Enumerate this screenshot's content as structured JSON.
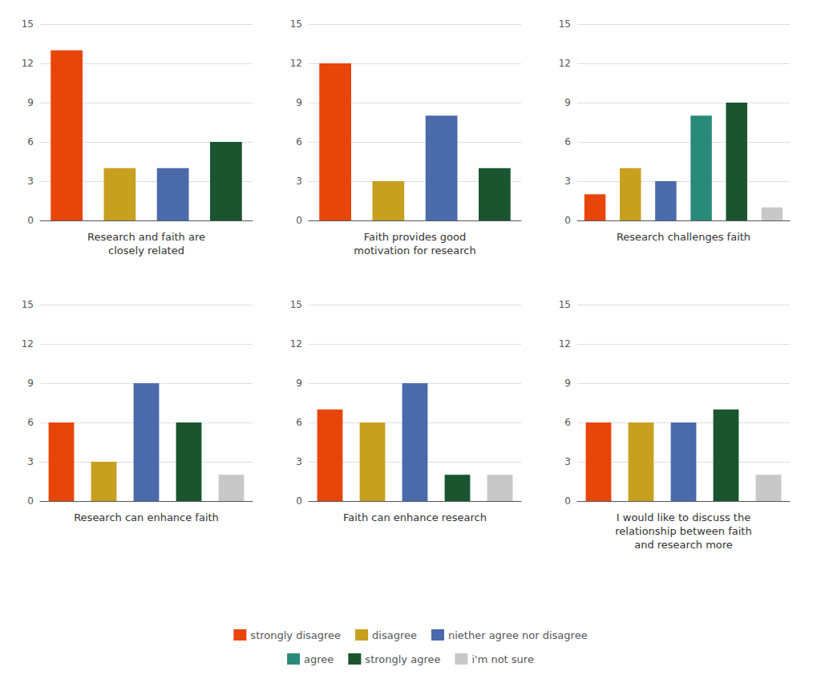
{
  "chart_data": [
    {
      "type": "bar",
      "xlabel": "Research and faith are\nclosely related",
      "categories": [
        null,
        null,
        null,
        null
      ],
      "series": [
        {
          "name": "strongly disagree",
          "color": "#E8450A",
          "values": [
            13,
            null,
            null,
            null
          ]
        },
        {
          "name": "disagree",
          "color": "#C8A020",
          "values": [
            null,
            4,
            null,
            null
          ]
        },
        {
          "name": "niether agree nor disagree",
          "color": "#4A6AAA",
          "values": [
            null,
            null,
            4,
            null
          ]
        },
        {
          "name": "strongly agree",
          "color": "#1A5530",
          "values": [
            null,
            null,
            null,
            6
          ]
        }
      ],
      "stacked": true,
      "ylim": [
        0,
        15
      ],
      "yticks": [
        0,
        3,
        6,
        9,
        12,
        15
      ],
      "grid": true,
      "tick_labels": "y",
      "legend": "bottom"
    },
    {
      "type": "bar",
      "xlabel": "Faith provides good\nmotivation for research",
      "categories": [
        null,
        null,
        null,
        null
      ],
      "series": [
        {
          "name": "strongly disagree",
          "color": "#E8450A",
          "values": [
            12,
            null,
            null,
            null
          ]
        },
        {
          "name": "disagree",
          "color": "#C8A020",
          "values": [
            null,
            3,
            null,
            null
          ]
        },
        {
          "name": "niether agree nor disagree",
          "color": "#4A6AAA",
          "values": [
            null,
            null,
            8,
            null
          ]
        },
        {
          "name": "strongly agree",
          "color": "#1A5530",
          "values": [
            null,
            null,
            null,
            4
          ]
        }
      ],
      "stacked": true,
      "ylim": [
        0,
        15
      ],
      "yticks": [
        0,
        3,
        6,
        9,
        12,
        15
      ],
      "grid": true,
      "tick_labels": "y",
      "legend": "bottom"
    },
    {
      "type": "bar",
      "xlabel": "Research challenges faith",
      "categories": [
        null,
        null,
        null,
        null,
        null,
        null
      ],
      "series": [
        {
          "name": "strongly disagree",
          "color": "#E8450A",
          "values": [
            2,
            null,
            null,
            null,
            null,
            null
          ]
        },
        {
          "name": "disagree",
          "color": "#C8A020",
          "values": [
            null,
            4,
            null,
            null,
            null,
            null
          ]
        },
        {
          "name": "niether agree nor disagree",
          "color": "#4A6AAA",
          "values": [
            null,
            null,
            3,
            null,
            null,
            null
          ]
        },
        {
          "name": "agree",
          "color": "#2A8A7A",
          "values": [
            null,
            null,
            null,
            8,
            null,
            null
          ]
        },
        {
          "name": "strongly agree",
          "color": "#1A5530",
          "values": [
            null,
            null,
            null,
            null,
            9,
            null
          ]
        },
        {
          "name": "i'm not sure",
          "color": "#C8C8C8",
          "values": [
            null,
            null,
            null,
            null,
            null,
            1
          ]
        }
      ],
      "stacked": true,
      "ylim": [
        0,
        15
      ],
      "yticks": [
        0,
        3,
        6,
        9,
        12,
        15
      ],
      "grid": true,
      "tick_labels": "y",
      "legend": "bottom"
    },
    {
      "type": "bar",
      "xlabel": "Research can enhance faith",
      "categories": [
        null,
        null,
        null,
        null,
        null
      ],
      "series": [
        {
          "name": "strongly disagree",
          "color": "#E8450A",
          "values": [
            6,
            null,
            null,
            null,
            null
          ]
        },
        {
          "name": "disagree",
          "color": "#C8A020",
          "values": [
            null,
            3,
            null,
            null,
            null
          ]
        },
        {
          "name": "niether agree nor disagree",
          "color": "#4A6AAA",
          "values": [
            null,
            null,
            9,
            null,
            null
          ]
        },
        {
          "name": "strongly agree",
          "color": "#1A5530",
          "values": [
            null,
            null,
            null,
            6,
            null
          ]
        },
        {
          "name": "i'm not sure",
          "color": "#C8C8C8",
          "values": [
            null,
            null,
            null,
            null,
            2
          ]
        }
      ],
      "stacked": true,
      "ylim": [
        0,
        15
      ],
      "yticks": [
        0,
        3,
        6,
        9,
        12,
        15
      ],
      "grid": true,
      "tick_labels": "y",
      "legend": "bottom"
    },
    {
      "type": "bar",
      "xlabel": "Faith can enhance research",
      "categories": [
        null,
        null,
        null,
        null,
        null
      ],
      "series": [
        {
          "name": "strongly disagree",
          "color": "#E8450A",
          "values": [
            7,
            null,
            null,
            null,
            null
          ]
        },
        {
          "name": "disagree",
          "color": "#C8A020",
          "values": [
            null,
            6,
            null,
            null,
            null
          ]
        },
        {
          "name": "niether agree nor disagree",
          "color": "#4A6AAA",
          "values": [
            null,
            null,
            9,
            null,
            null
          ]
        },
        {
          "name": "strongly agree",
          "color": "#1A5530",
          "values": [
            null,
            null,
            null,
            2,
            null
          ]
        },
        {
          "name": "i'm not sure",
          "color": "#C8C8C8",
          "values": [
            null,
            null,
            null,
            null,
            2
          ]
        }
      ],
      "stacked": true,
      "ylim": [
        0,
        15
      ],
      "yticks": [
        0,
        3,
        6,
        9,
        12,
        15
      ],
      "grid": true,
      "tick_labels": "y",
      "legend": "bottom"
    },
    {
      "type": "bar",
      "xlabel": "I would like to discuss the\nrelationship between faith\nand research more",
      "categories": [
        null,
        null,
        null,
        null,
        null
      ],
      "series": [
        {
          "name": "strongly disagree",
          "color": "#E8450A",
          "values": [
            6,
            null,
            null,
            null,
            null
          ]
        },
        {
          "name": "disagree",
          "color": "#C8A020",
          "values": [
            null,
            6,
            null,
            null,
            null
          ]
        },
        {
          "name": "niether agree nor disagree",
          "color": "#4A6AAA",
          "values": [
            null,
            null,
            6,
            null,
            null
          ]
        },
        {
          "name": "strongly agree",
          "color": "#1A5530",
          "values": [
            null,
            null,
            null,
            7,
            null
          ]
        },
        {
          "name": "i'm not sure",
          "color": "#C8C8C8",
          "values": [
            null,
            null,
            null,
            null,
            2
          ]
        }
      ],
      "stacked": true,
      "ylim": [
        0,
        15
      ],
      "yticks": [
        0,
        3,
        6,
        9,
        12,
        15
      ],
      "grid": true,
      "tick_labels": "y",
      "legend": "bottom"
    }
  ]
}
